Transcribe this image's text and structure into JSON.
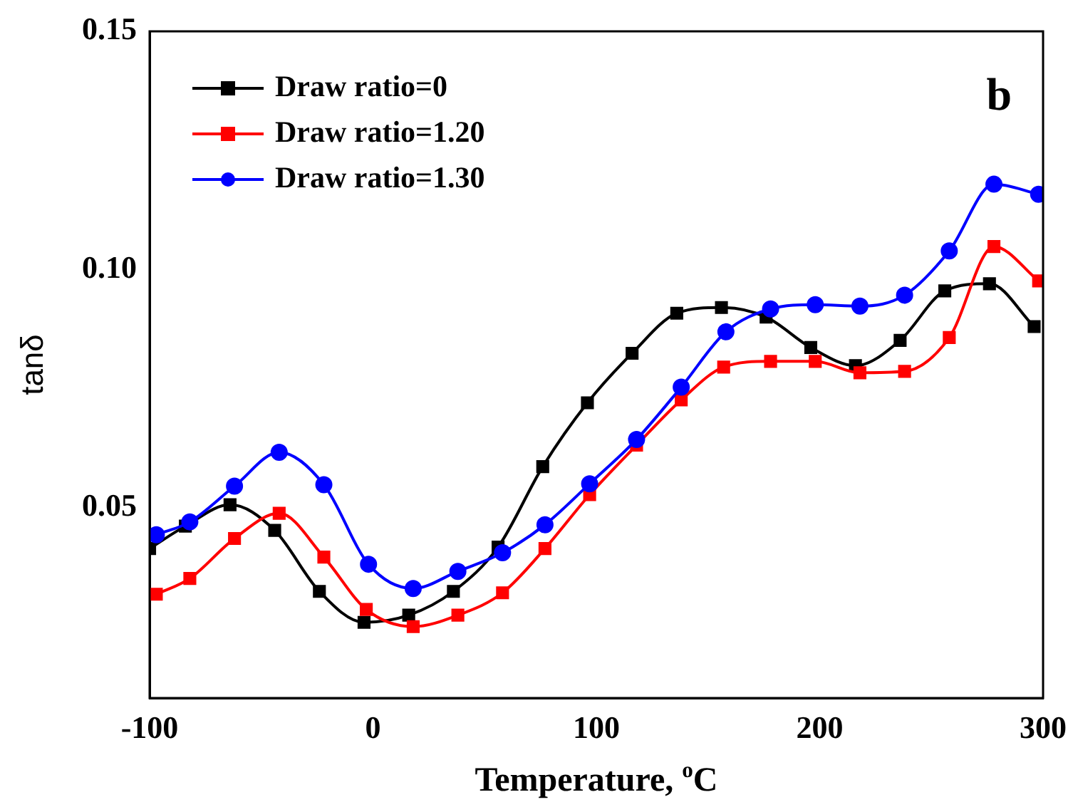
{
  "chart_data": {
    "type": "line",
    "xlabel": "Temperature, $^{o}$C",
    "ylabel": "tanδ",
    "annotations": [
      "b"
    ],
    "xlim": [
      -100,
      300
    ],
    "xticks": [
      -100,
      0,
      100,
      200,
      300
    ],
    "ylim": [
      0.01,
      0.15
    ],
    "yticks": [
      {
        "value": 0.05,
        "label": "0.05"
      },
      {
        "value": 0.1,
        "label": "0.10"
      },
      {
        "value": 0.15,
        "label": "0.15"
      }
    ],
    "grid": false,
    "legend": "top left",
    "line_style": "solid",
    "series": [
      {
        "name": "Draw ratio=0",
        "color": "#000000",
        "marker": "square",
        "x": [
          -100,
          -84,
          -64,
          -44,
          -24,
          -4,
          16,
          36,
          56,
          76,
          96,
          116,
          136,
          156,
          176,
          196,
          216,
          236,
          256,
          276,
          296
        ],
        "values": [
          0.0414,
          0.0461,
          0.0506,
          0.0452,
          0.0324,
          0.0259,
          0.0274,
          0.0324,
          0.0417,
          0.0586,
          0.072,
          0.0824,
          0.0908,
          0.092,
          0.09,
          0.0836,
          0.0798,
          0.0851,
          0.0955,
          0.097,
          0.088
        ]
      },
      {
        "name": "Draw ratio=1.20",
        "color": "#ff0000",
        "marker": "square",
        "x": [
          -97,
          -82,
          -62,
          -42,
          -22,
          -3,
          18,
          38,
          58,
          77,
          97,
          118,
          138,
          157,
          178,
          198,
          218,
          238,
          258,
          278,
          298
        ],
        "values": [
          0.0318,
          0.0351,
          0.0435,
          0.0488,
          0.0396,
          0.0286,
          0.025,
          0.0274,
          0.0321,
          0.0414,
          0.0527,
          0.0631,
          0.0726,
          0.0795,
          0.0807,
          0.0807,
          0.0783,
          0.0786,
          0.0857,
          0.1048,
          0.0976
        ]
      },
      {
        "name": "Draw ratio=1.30",
        "color": "#0000ff",
        "marker": "circle",
        "x": [
          -97,
          -82,
          -62,
          -42,
          -22,
          -2,
          18,
          38,
          58,
          77,
          97,
          118,
          138,
          158,
          178,
          198,
          218,
          238,
          258,
          278,
          298
        ],
        "values": [
          0.0443,
          0.047,
          0.0545,
          0.0616,
          0.0548,
          0.0381,
          0.033,
          0.0366,
          0.0405,
          0.0464,
          0.055,
          0.0643,
          0.0753,
          0.0869,
          0.0917,
          0.0926,
          0.0923,
          0.0946,
          0.1039,
          0.1179,
          0.1158
        ]
      }
    ]
  }
}
